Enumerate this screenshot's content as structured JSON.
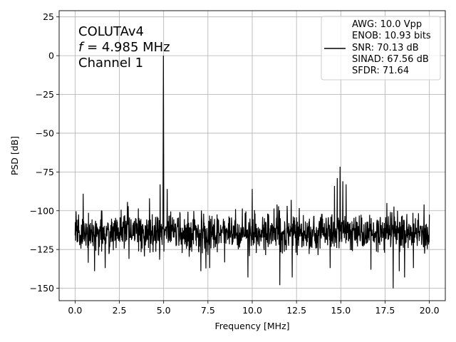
{
  "chart_data": {
    "type": "line",
    "title": "",
    "xlabel": "Frequency [MHz]",
    "ylabel": "PSD [dB]",
    "xlim": [
      -0.9,
      20.9
    ],
    "ylim": [
      -158,
      29
    ],
    "xticks": [
      0.0,
      2.5,
      5.0,
      7.5,
      10.0,
      12.5,
      15.0,
      17.5,
      20.0
    ],
    "xtick_labels": [
      "0.0",
      "2.5",
      "5.0",
      "7.5",
      "10.0",
      "12.5",
      "15.0",
      "17.5",
      "20.0"
    ],
    "yticks": [
      25,
      0,
      -25,
      -50,
      -75,
      -100,
      -125,
      -150
    ],
    "ytick_labels": [
      "25",
      "0",
      "−25",
      "−50",
      "−75",
      "−100",
      "−125",
      "−150"
    ],
    "grid": true,
    "legend_position": "top-right",
    "annotation": {
      "line1": "COLUTAv4",
      "line2_var": "f",
      "line2_rest": " = 4.985 MHz",
      "line3": "Channel 1"
    },
    "legend": {
      "line_color": "#000000",
      "entries": [
        "AWG: 10.0 Vpp",
        "ENOB: 10.93 bits",
        "SNR: 70.13 dB",
        "SINAD: 67.56 dB",
        "SFDR: 71.64"
      ]
    },
    "series": [
      {
        "color": "#000000",
        "noise_floor_db": -114,
        "noise_range_db": [
          -150,
          -89
        ],
        "fundamental": {
          "x": 4.985,
          "y": 0
        },
        "spurs": [
          {
            "x": 14.96,
            "y": -71.6
          },
          {
            "x": 14.8,
            "y": -79
          },
          {
            "x": 15.12,
            "y": -81
          },
          {
            "x": 14.64,
            "y": -84
          },
          {
            "x": 15.3,
            "y": -83
          },
          {
            "x": 4.8,
            "y": -83
          },
          {
            "x": 5.2,
            "y": -86
          },
          {
            "x": 10.0,
            "y": -86
          },
          {
            "x": 0.45,
            "y": -89
          },
          {
            "x": 12.2,
            "y": -93
          },
          {
            "x": 11.4,
            "y": -96
          },
          {
            "x": 17.6,
            "y": -95
          },
          {
            "x": 18.2,
            "y": -100
          },
          {
            "x": 19.7,
            "y": -96
          },
          {
            "x": 3.0,
            "y": -97
          },
          {
            "x": 4.2,
            "y": -92
          }
        ],
        "dips": [
          {
            "x": 17.95,
            "y": -150
          },
          {
            "x": 11.55,
            "y": -148
          },
          {
            "x": 12.25,
            "y": -143
          },
          {
            "x": 9.75,
            "y": -143
          },
          {
            "x": 1.1,
            "y": -139
          },
          {
            "x": 7.1,
            "y": -139
          },
          {
            "x": 18.6,
            "y": -143
          },
          {
            "x": 18.3,
            "y": -139
          },
          {
            "x": 16.7,
            "y": -138
          },
          {
            "x": 1.7,
            "y": -137
          },
          {
            "x": 19.1,
            "y": -137
          },
          {
            "x": 14.4,
            "y": -137
          },
          {
            "x": 7.6,
            "y": -137
          }
        ]
      }
    ]
  }
}
